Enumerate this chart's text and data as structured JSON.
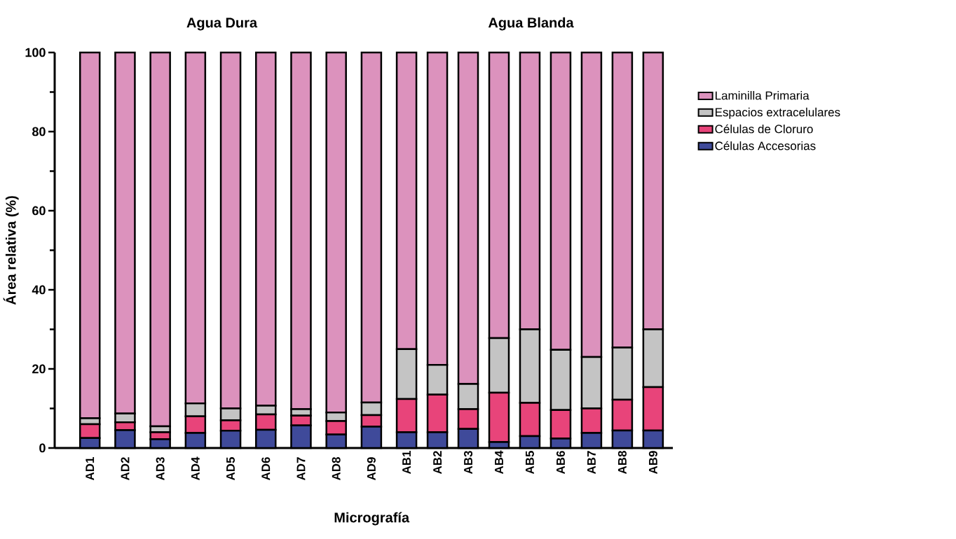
{
  "chart_data": [
    {
      "type": "bar",
      "stacked": true,
      "title": "Agua Dura",
      "ylabel": "Área relativa (%)",
      "xlabel": "Micrografía",
      "categories": [
        "AD1",
        "AD2",
        "AD3",
        "AD4",
        "AD5",
        "AD6",
        "AD7",
        "AD8",
        "AD9"
      ],
      "ylim": [
        0,
        100
      ],
      "yticks": [
        0,
        20,
        40,
        60,
        80,
        100
      ],
      "grid": false,
      "legend": false,
      "series": [
        {
          "color": "#3f4a9a",
          "values": [
            2.5,
            4.5,
            2.2,
            3.8,
            4.4,
            4.6,
            5.7,
            3.4,
            5.4
          ]
        },
        {
          "color": "#e8447a",
          "values": [
            3.5,
            2.0,
            1.8,
            4.2,
            2.6,
            3.9,
            2.5,
            3.4,
            2.9
          ]
        },
        {
          "color": "#c4c4c4",
          "values": [
            1.5,
            2.2,
            1.5,
            3.3,
            3.0,
            2.2,
            1.6,
            2.2,
            3.2
          ]
        },
        {
          "color": "#dc92bd",
          "values": [
            92.5,
            91.3,
            94.5,
            88.7,
            90.0,
            89.3,
            90.2,
            91.0,
            88.5
          ]
        }
      ]
    },
    {
      "type": "bar",
      "stacked": true,
      "title": "Agua Blanda",
      "categories": [
        "AB1",
        "AB2",
        "AB3",
        "AB4",
        "AB5",
        "AB6",
        "AB7",
        "AB8",
        "AB9"
      ],
      "ylim": [
        0,
        100
      ],
      "tick_labels": "x",
      "grid": false,
      "legend": "right",
      "series": [
        {
          "name": "Células Accesorias",
          "color": "#3f4a9a",
          "values": [
            4.0,
            4.0,
            4.8,
            1.5,
            3.0,
            2.4,
            3.8,
            4.4,
            4.4
          ]
        },
        {
          "name": "Células de Cloruro",
          "color": "#e8447a",
          "values": [
            8.4,
            9.5,
            5.0,
            12.5,
            8.4,
            7.2,
            6.2,
            7.8,
            11.0
          ]
        },
        {
          "name": "Espacios extracelulares",
          "color": "#c4c4c4",
          "values": [
            12.6,
            7.5,
            6.4,
            13.8,
            18.6,
            15.2,
            13.0,
            13.2,
            14.6
          ]
        },
        {
          "name": "Laminilla Primaria",
          "color": "#dc92bd",
          "values": [
            75.0,
            79.0,
            83.8,
            72.2,
            70.0,
            75.2,
            77.0,
            74.6,
            70.0
          ]
        }
      ]
    }
  ]
}
